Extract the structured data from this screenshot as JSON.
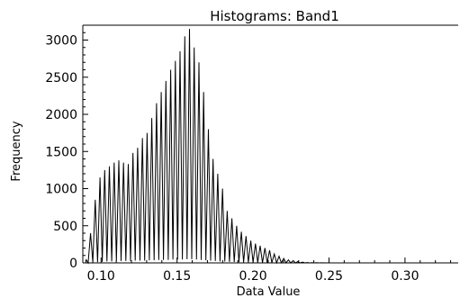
{
  "chart_data": {
    "type": "line",
    "title": "Histograms: Band1",
    "xlabel": "Data Value",
    "ylabel": "Frequency",
    "xlim": [
      0.088,
      0.335
    ],
    "ylim": [
      0,
      3200
    ],
    "xticks": [
      "0.10",
      "0.15",
      "0.20",
      "0.25",
      "0.30"
    ],
    "yticks": [
      "0",
      "500",
      "1000",
      "1500",
      "2000",
      "2500",
      "3000"
    ],
    "grid": false,
    "legend": "none",
    "series_color": "#000000",
    "peaks": {
      "x": [
        0.09,
        0.0931,
        0.0962,
        0.0993,
        0.1024,
        0.1055,
        0.1086,
        0.1117,
        0.1148,
        0.1179,
        0.121,
        0.1241,
        0.1272,
        0.1303,
        0.1334,
        0.1365,
        0.1396,
        0.1427,
        0.1458,
        0.1489,
        0.152,
        0.1551,
        0.1582,
        0.1613,
        0.1644,
        0.1675,
        0.1706,
        0.1737,
        0.1768,
        0.1799,
        0.183,
        0.1861,
        0.1892,
        0.1923,
        0.1954,
        0.1985,
        0.2016,
        0.2047,
        0.2078,
        0.2109,
        0.214,
        0.2171,
        0.2202,
        0.2233,
        0.2264,
        0.2295,
        0.2326,
        0.2357,
        0.2388,
        0.2419,
        0.245,
        0.25,
        0.26,
        0.27,
        0.28,
        0.29,
        0.3,
        0.31,
        0.32,
        0.33
      ],
      "y": [
        50,
        400,
        850,
        1150,
        1250,
        1300,
        1350,
        1380,
        1350,
        1330,
        1480,
        1550,
        1680,
        1750,
        1950,
        2150,
        2300,
        2450,
        2600,
        2720,
        2850,
        3050,
        3150,
        2900,
        2700,
        2300,
        1800,
        1400,
        1200,
        1000,
        700,
        600,
        500,
        420,
        360,
        300,
        260,
        230,
        200,
        170,
        120,
        90,
        60,
        40,
        30,
        20,
        10,
        5,
        3,
        2,
        1,
        0,
        0,
        0,
        0,
        0,
        0,
        0,
        0,
        0
      ]
    },
    "valleys": {
      "x": [
        0.0915,
        0.0946,
        0.0977,
        0.1008,
        0.1039,
        0.107,
        0.1101,
        0.1132,
        0.1163,
        0.1194,
        0.1225,
        0.1256,
        0.1287,
        0.1318,
        0.1349,
        0.138,
        0.1411,
        0.1442,
        0.1473,
        0.1504,
        0.1535,
        0.1566,
        0.1597,
        0.1628,
        0.1659,
        0.169,
        0.1721,
        0.1752,
        0.1783,
        0.1814,
        0.1845,
        0.1876,
        0.1907,
        0.1938,
        0.1969,
        0.2,
        0.2031,
        0.2062,
        0.2093,
        0.2124,
        0.2155,
        0.2186,
        0.2217,
        0.2248,
        0.2279,
        0.231,
        0.2341,
        0.2372,
        0.2403,
        0.2434
      ],
      "y": [
        0,
        5,
        10,
        15,
        20,
        20,
        25,
        25,
        25,
        25,
        30,
        30,
        30,
        35,
        35,
        40,
        40,
        40,
        45,
        45,
        45,
        50,
        50,
        45,
        40,
        35,
        30,
        25,
        20,
        18,
        15,
        12,
        10,
        8,
        6,
        5,
        4,
        3,
        2,
        2,
        1,
        1,
        0,
        0,
        0,
        0,
        0,
        0,
        0,
        0
      ]
    }
  }
}
